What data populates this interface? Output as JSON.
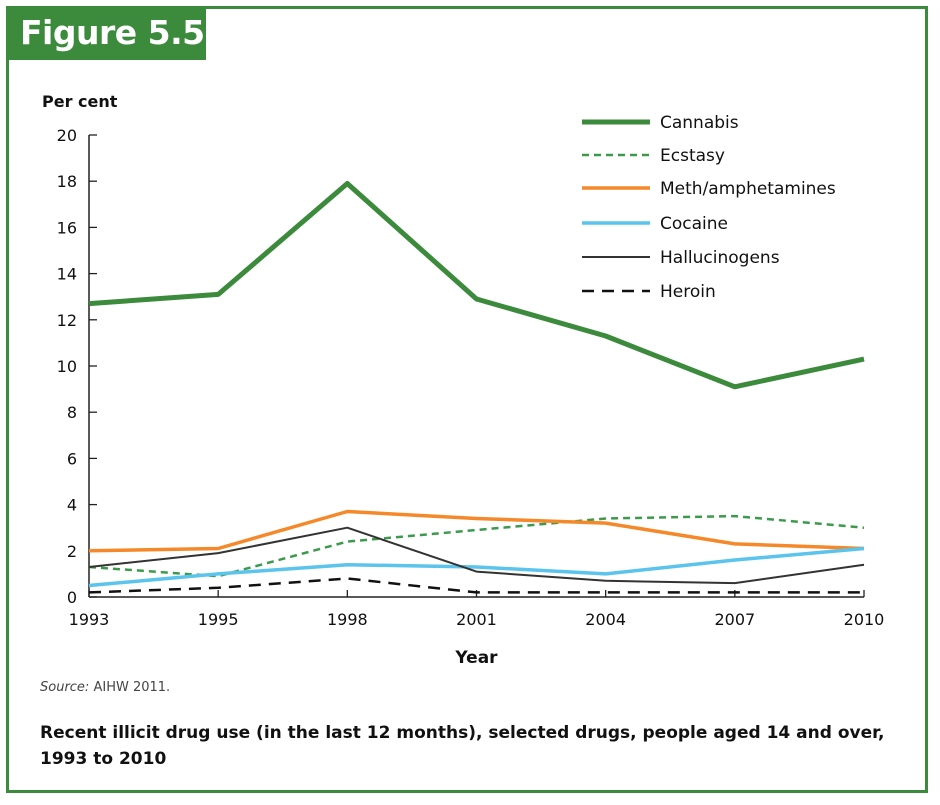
{
  "figure_label": "Figure 5.5",
  "source_label": "Source:",
  "source_text": " AIHW 2011.",
  "caption": "Recent illicit drug use (in the last 12 months), selected drugs, people aged 14 and over, 1993 to 2010",
  "chart_data": {
    "type": "line",
    "x": [
      "1993",
      "1995",
      "1998",
      "2001",
      "2004",
      "2007",
      "2010"
    ],
    "ylabel": "Per cent",
    "xlabel": "Year",
    "ylim": [
      0,
      20
    ],
    "yticks": [
      0,
      2,
      4,
      6,
      8,
      10,
      12,
      14,
      16,
      18,
      20
    ],
    "grid": false,
    "legend": "top-right",
    "series": [
      {
        "name": "Cannabis",
        "values": [
          12.7,
          13.1,
          17.9,
          12.9,
          11.3,
          9.1,
          10.3
        ],
        "color": "#3c8a3c",
        "style": "thick-solid"
      },
      {
        "name": "Ecstasy",
        "values": [
          1.3,
          0.9,
          2.4,
          2.9,
          3.4,
          3.5,
          3.0
        ],
        "color": "#3c9a4c",
        "style": "dashed"
      },
      {
        "name": "Meth/amphetamines",
        "values": [
          2.0,
          2.1,
          3.7,
          3.4,
          3.2,
          2.3,
          2.1
        ],
        "color": "#f5892a",
        "style": "solid"
      },
      {
        "name": "Cocaine",
        "values": [
          0.5,
          1.0,
          1.4,
          1.3,
          1.0,
          1.6,
          2.1
        ],
        "color": "#5ac4ec",
        "style": "solid"
      },
      {
        "name": "Hallucinogens",
        "values": [
          1.3,
          1.9,
          3.0,
          1.1,
          0.7,
          0.6,
          1.4
        ],
        "color": "#333333",
        "style": "thin-solid"
      },
      {
        "name": "Heroin",
        "values": [
          0.2,
          0.4,
          0.8,
          0.2,
          0.2,
          0.2,
          0.2
        ],
        "color": "#111111",
        "style": "dashed-black"
      }
    ]
  }
}
